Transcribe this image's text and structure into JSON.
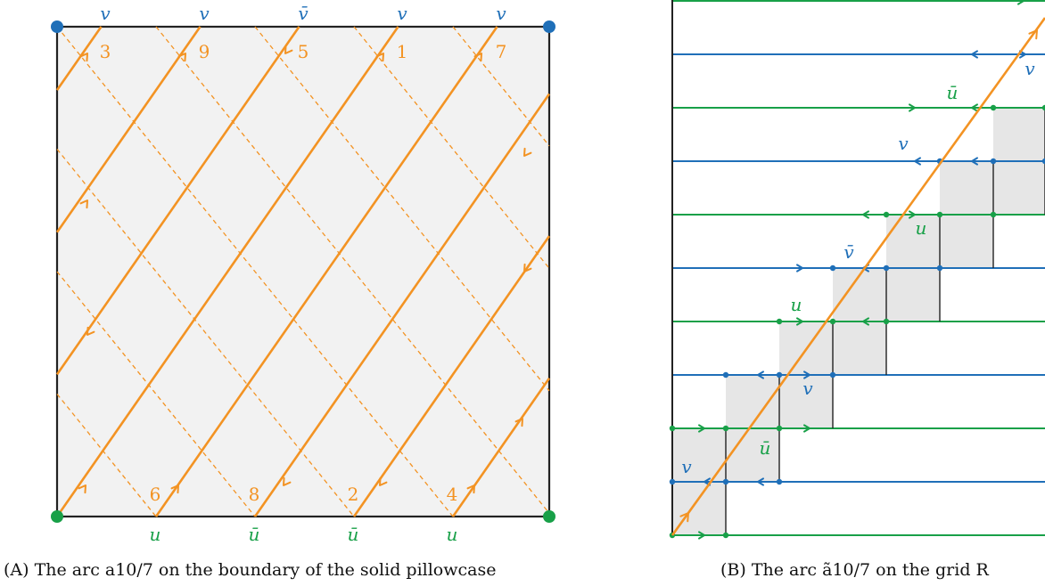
{
  "caption_a": "(A) The arc a10/7 on the boundary of the solid pillowcase",
  "caption_b": "(B) The arc ã10/7 on the grid R",
  "colors": {
    "orange": "#f39323",
    "blue": "#1f6fb8",
    "green": "#18a048",
    "square_fill": "#f2f2f2",
    "cell_fill": "#e6e6e6",
    "frame": "#222222"
  },
  "panel_a": {
    "top_labels": [
      "v",
      "v",
      "v̄",
      "v",
      "v"
    ],
    "bottom_labels": [
      "u",
      "ū",
      "ū",
      "u"
    ],
    "top_numbers": [
      "3",
      "9",
      "5",
      "1",
      "7"
    ],
    "bottom_numbers": [
      "6",
      "8",
      "2",
      "4"
    ]
  },
  "panel_b": {
    "labels": [
      {
        "text": "v",
        "color": "blue"
      },
      {
        "text": "ū",
        "color": "green"
      },
      {
        "text": "v",
        "color": "blue"
      },
      {
        "text": "u",
        "color": "green"
      },
      {
        "text": "v̄",
        "color": "blue"
      },
      {
        "text": "u",
        "color": "green"
      },
      {
        "text": "v",
        "color": "blue"
      },
      {
        "text": "ū",
        "color": "green"
      },
      {
        "text": "v",
        "color": "blue"
      }
    ]
  }
}
